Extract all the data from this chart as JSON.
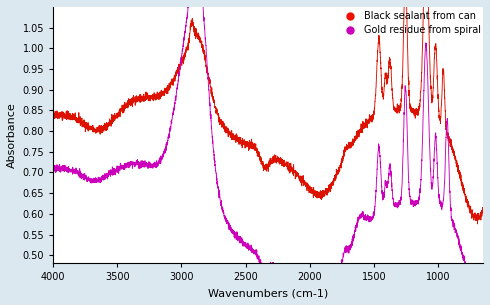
{
  "xlabel": "Wavenumbers (cm-1)",
  "ylabel": "Absorbance",
  "xlim": [
    4000,
    650
  ],
  "ylim": [
    0.48,
    1.1
  ],
  "yticks": [
    0.5,
    0.55,
    0.6,
    0.65,
    0.7,
    0.75,
    0.8,
    0.85,
    0.9,
    0.95,
    1.0,
    1.05
  ],
  "xticks": [
    4000,
    3500,
    3000,
    2500,
    2000,
    1500,
    1000
  ],
  "legend": [
    {
      "label": "Black sealant from can",
      "color": "#ee1100",
      "marker": "o"
    },
    {
      "label": "Gold residue from spiral",
      "color": "#cc00bb",
      "marker": "o"
    }
  ],
  "line_color_red": "#dd1100",
  "line_color_magenta": "#cc00bb",
  "bg_color": "#dce8f0"
}
